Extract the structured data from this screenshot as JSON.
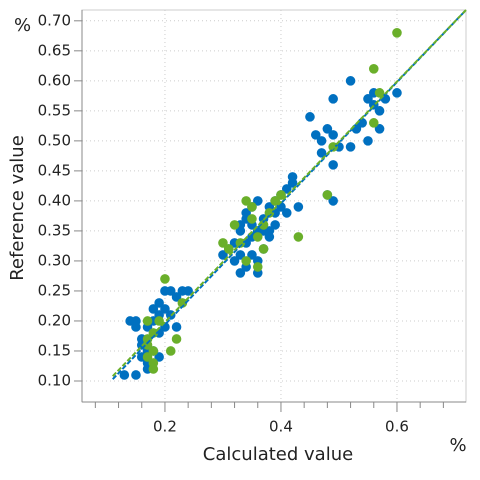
{
  "chart_data": {
    "type": "scatter",
    "x_unit": "%",
    "y_unit": "%",
    "xlabel": "Calculated value",
    "ylabel": "Reference value",
    "xlim": [
      0.057,
      0.719
    ],
    "ylim": [
      0.065,
      0.718
    ],
    "xticks": [
      {
        "value": 0.2,
        "label": "0.2"
      },
      {
        "value": 0.4,
        "label": "0.4"
      },
      {
        "value": 0.6,
        "label": "0.6"
      }
    ],
    "xminorticks": [
      0.08,
      0.12,
      0.16,
      0.24,
      0.28,
      0.32,
      0.36,
      0.44,
      0.48,
      0.52,
      0.56,
      0.64,
      0.68
    ],
    "yticks": [
      {
        "value": 0.1,
        "label": "0.10"
      },
      {
        "value": 0.15,
        "label": "0.15"
      },
      {
        "value": 0.2,
        "label": "0.20"
      },
      {
        "value": 0.25,
        "label": "0.25"
      },
      {
        "value": 0.3,
        "label": "0.30"
      },
      {
        "value": 0.35,
        "label": "0.35"
      },
      {
        "value": 0.4,
        "label": "0.40"
      },
      {
        "value": 0.45,
        "label": "0.45"
      },
      {
        "value": 0.5,
        "label": "0.50"
      },
      {
        "value": 0.55,
        "label": "0.55"
      },
      {
        "value": 0.6,
        "label": "0.60"
      },
      {
        "value": 0.65,
        "label": "0.65"
      },
      {
        "value": 0.7,
        "label": "0.70"
      }
    ],
    "grid": true,
    "series": [
      {
        "color": "#0070c0",
        "x": [
          0.52,
          0.55,
          0.56,
          0.57,
          0.58,
          0.57,
          0.6,
          0.56,
          0.49,
          0.45,
          0.46,
          0.47,
          0.48,
          0.49,
          0.5,
          0.52,
          0.53,
          0.55,
          0.49,
          0.49,
          0.48,
          0.54,
          0.47,
          0.33,
          0.34,
          0.35,
          0.36,
          0.37,
          0.38,
          0.39,
          0.4,
          0.41,
          0.42,
          0.42,
          0.39,
          0.38,
          0.36,
          0.35,
          0.34,
          0.33,
          0.32,
          0.31,
          0.32,
          0.33,
          0.34,
          0.35,
          0.36,
          0.37,
          0.38,
          0.36,
          0.33,
          0.34,
          0.3,
          0.4,
          0.41,
          0.39,
          0.37,
          0.35,
          0.43,
          0.13,
          0.15,
          0.14,
          0.15,
          0.16,
          0.17,
          0.17,
          0.18,
          0.19,
          0.2,
          0.21,
          0.22,
          0.23,
          0.24,
          0.2,
          0.19,
          0.18,
          0.17,
          0.16,
          0.19,
          0.21,
          0.22,
          0.2,
          0.18,
          0.16,
          0.17,
          0.15,
          0.19
        ],
        "values": [
          0.6,
          0.57,
          0.58,
          0.55,
          0.57,
          0.52,
          0.58,
          0.56,
          0.57,
          0.54,
          0.51,
          0.5,
          0.52,
          0.51,
          0.49,
          0.49,
          0.52,
          0.5,
          0.46,
          0.4,
          0.41,
          0.53,
          0.48,
          0.36,
          0.38,
          0.39,
          0.4,
          0.37,
          0.39,
          0.4,
          0.41,
          0.42,
          0.44,
          0.43,
          0.36,
          0.35,
          0.35,
          0.34,
          0.33,
          0.31,
          0.3,
          0.32,
          0.33,
          0.28,
          0.29,
          0.31,
          0.3,
          0.32,
          0.34,
          0.28,
          0.35,
          0.37,
          0.31,
          0.39,
          0.38,
          0.38,
          0.35,
          0.36,
          0.39,
          0.11,
          0.11,
          0.2,
          0.19,
          0.17,
          0.15,
          0.13,
          0.2,
          0.21,
          0.22,
          0.25,
          0.24,
          0.25,
          0.25,
          0.19,
          0.23,
          0.22,
          0.19,
          0.16,
          0.18,
          0.21,
          0.19,
          0.25,
          0.15,
          0.14,
          0.12,
          0.2,
          0.14
        ]
      },
      {
        "color": "#6aaf2a",
        "x": [
          0.6,
          0.56,
          0.57,
          0.56,
          0.49,
          0.48,
          0.43,
          0.4,
          0.3,
          0.31,
          0.33,
          0.34,
          0.35,
          0.36,
          0.37,
          0.38,
          0.35,
          0.34,
          0.36,
          0.39,
          0.32,
          0.37,
          0.2,
          0.17,
          0.17,
          0.18,
          0.17,
          0.18,
          0.18,
          0.19,
          0.21,
          0.22,
          0.23,
          0.17,
          0.18
        ],
        "values": [
          0.68,
          0.62,
          0.58,
          0.53,
          0.49,
          0.41,
          0.34,
          0.41,
          0.33,
          0.32,
          0.33,
          0.3,
          0.39,
          0.34,
          0.32,
          0.38,
          0.37,
          0.4,
          0.29,
          0.4,
          0.36,
          0.36,
          0.27,
          0.17,
          0.16,
          0.15,
          0.14,
          0.13,
          0.18,
          0.2,
          0.15,
          0.17,
          0.23,
          0.2,
          0.12
        ]
      }
    ],
    "fit_lines": [
      {
        "color": "#0070c0",
        "x": [
          0.11,
          0.719
        ],
        "y": [
          0.103,
          0.718
        ]
      },
      {
        "color": "#6aaf2a",
        "x": [
          0.11,
          0.719
        ],
        "y": [
          0.108,
          0.718
        ]
      }
    ]
  }
}
